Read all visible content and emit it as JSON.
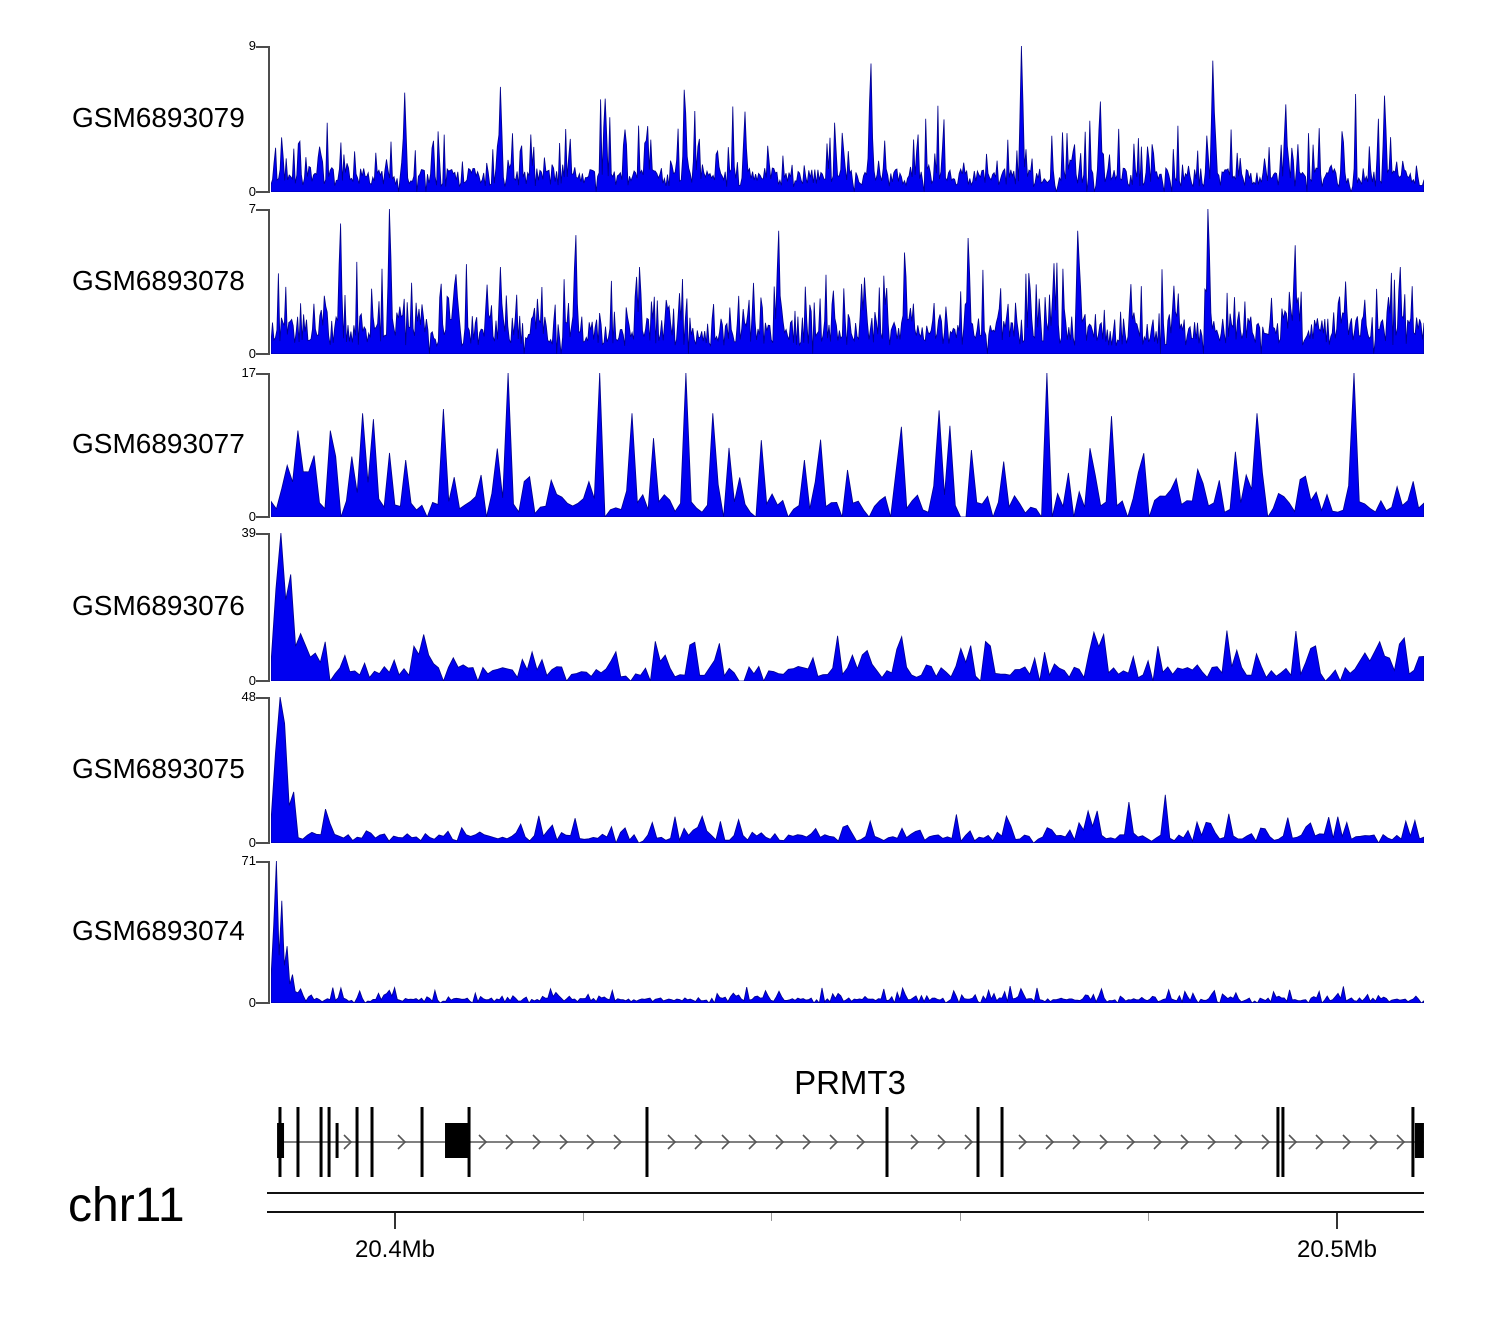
{
  "colors": {
    "signal_fill": "#0000f0",
    "signal_stroke": "#00008b",
    "axis_bracket": "#4d4d4d",
    "gene_black": "#000000",
    "gene_line_gray": "#808080",
    "arrow_gray": "#555555"
  },
  "chart_data": {
    "type": "area",
    "description": "Genome-browser coverage tracks (6 GEO samples) over chr11 around the PRMT3 gene; x axis 20.4Mb to 20.5Mb",
    "x_axis": {
      "unit": "Mb",
      "chrom_label": "chr11",
      "range_mb": [
        20.3868,
        20.5092
      ],
      "major_ticks": [
        {
          "mb": 20.4,
          "label": "20.4Mb"
        },
        {
          "mb": 20.5,
          "label": "20.5Mb"
        }
      ],
      "minor_ticks_mb": [
        20.42,
        20.44,
        20.46,
        20.48
      ]
    },
    "tracks": [
      {
        "label": "GSM6893079",
        "ymin": 0,
        "ymax": 9,
        "gen": {
          "seed": 101,
          "n": 760,
          "base": 0.1,
          "gap_prob": 0.02,
          "spike_prob": 0.33,
          "spike": 0.2,
          "tall_prob": 0.05,
          "tall": 0.28,
          "envelope": [
            [
              0,
              1
            ],
            [
              1,
              1
            ]
          ],
          "peaks": [
            [
              0.116,
              0.68,
              0.003
            ],
            [
              0.199,
              0.72,
              0.003
            ],
            [
              0.29,
              0.64,
              0.003
            ],
            [
              0.359,
              0.7,
              0.003
            ],
            [
              0.411,
              0.55,
              0.003
            ],
            [
              0.52,
              0.88,
              0.003
            ],
            [
              0.651,
              1.0,
              0.003
            ],
            [
              0.719,
              0.62,
              0.003
            ],
            [
              0.817,
              0.9,
              0.003
            ],
            [
              0.88,
              0.6,
              0.003
            ],
            [
              0.966,
              0.66,
              0.003
            ]
          ]
        }
      },
      {
        "label": "GSM6893078",
        "ymin": 0,
        "ymax": 7,
        "gen": {
          "seed": 202,
          "n": 780,
          "base": 0.16,
          "gap_prob": 0.02,
          "spike_prob": 0.38,
          "spike": 0.22,
          "tall_prob": 0.05,
          "tall": 0.26,
          "envelope": [
            [
              0,
              1
            ],
            [
              1,
              1
            ]
          ],
          "peaks": [
            [
              0.06,
              0.9,
              0.003
            ],
            [
              0.103,
              1.0,
              0.003
            ],
            [
              0.16,
              0.55,
              0.006
            ],
            [
              0.199,
              0.6,
              0.003
            ],
            [
              0.264,
              0.82,
              0.003
            ],
            [
              0.32,
              0.6,
              0.003
            ],
            [
              0.44,
              0.85,
              0.003
            ],
            [
              0.55,
              0.7,
              0.003
            ],
            [
              0.605,
              0.8,
              0.003
            ],
            [
              0.7,
              0.85,
              0.003
            ],
            [
              0.813,
              1.0,
              0.003
            ],
            [
              0.888,
              0.75,
              0.003
            ],
            [
              0.932,
              0.5,
              0.003
            ],
            [
              0.979,
              0.6,
              0.003
            ]
          ]
        }
      },
      {
        "label": "GSM6893077",
        "ymin": 0,
        "ymax": 17,
        "gen": {
          "seed": 303,
          "n": 215,
          "base": 0.07,
          "gap_prob": 0.08,
          "spike_prob": 0.55,
          "spike": 0.25,
          "tall_prob": 0.05,
          "tall": 0.3,
          "envelope": [
            [
              0,
              1
            ],
            [
              1,
              1
            ]
          ],
          "peaks": [
            [
              0.0217,
              0.6,
              0.004
            ],
            [
              0.0512,
              0.6,
              0.004
            ],
            [
              0.0798,
              0.72,
              0.004
            ],
            [
              0.0867,
              0.68,
              0.004
            ],
            [
              0.1492,
              0.75,
              0.004
            ],
            [
              0.2055,
              1.0,
              0.0035
            ],
            [
              0.2853,
              1.0,
              0.0035
            ],
            [
              0.3114,
              0.72,
              0.004
            ],
            [
              0.3608,
              1.0,
              0.0035
            ],
            [
              0.3851,
              0.72,
              0.004
            ],
            [
              0.5776,
              0.74,
              0.004
            ],
            [
              0.6722,
              1.0,
              0.0035
            ],
            [
              0.7277,
              0.7,
              0.004
            ],
            [
              0.8534,
              0.72,
              0.004
            ],
            [
              0.9375,
              1.0,
              0.0035
            ]
          ]
        }
      },
      {
        "label": "GSM6893076",
        "ymin": 0,
        "ymax": 39,
        "gen": {
          "seed": 404,
          "n": 235,
          "base": 0.06,
          "gap_prob": 0.06,
          "spike_prob": 0.5,
          "spike": 0.13,
          "tall_prob": 0.04,
          "tall": 0.15,
          "envelope": [
            [
              0,
              1
            ],
            [
              1,
              1
            ]
          ],
          "peaks": [
            [
              0.004,
              0.62,
              0.005
            ],
            [
              0.009,
              1.0,
              0.004
            ],
            [
              0.013,
              0.55,
              0.004
            ],
            [
              0.018,
              0.72,
              0.005
            ],
            [
              0.024,
              0.32,
              0.006
            ],
            [
              0.032,
              0.18,
              0.008
            ],
            [
              0.13,
              0.18,
              0.005
            ],
            [
              0.545,
              0.3,
              0.008
            ],
            [
              0.6,
              0.22,
              0.006
            ],
            [
              0.715,
              0.33,
              0.01
            ],
            [
              0.9,
              0.22,
              0.006
            ],
            [
              0.98,
              0.25,
              0.004
            ]
          ]
        }
      },
      {
        "label": "GSM6893075",
        "ymin": 0,
        "ymax": 48,
        "gen": {
          "seed": 505,
          "n": 255,
          "base": 0.035,
          "gap_prob": 0.05,
          "spike_prob": 0.45,
          "spike": 0.08,
          "tall_prob": 0.04,
          "tall": 0.1,
          "envelope": [
            [
              0,
              1
            ],
            [
              1,
              1
            ]
          ],
          "peaks": [
            [
              0.003,
              0.62,
              0.004
            ],
            [
              0.007,
              1.0,
              0.0035
            ],
            [
              0.013,
              0.82,
              0.004
            ],
            [
              0.019,
              0.35,
              0.005
            ],
            [
              0.35,
              0.18,
              0.004
            ],
            [
              0.52,
              0.15,
              0.004
            ],
            [
              0.715,
              0.22,
              0.005
            ],
            [
              0.745,
              0.28,
              0.004
            ],
            [
              0.775,
              0.33,
              0.004
            ],
            [
              0.83,
              0.2,
              0.004
            ],
            [
              0.925,
              0.18,
              0.004
            ],
            [
              0.985,
              0.15,
              0.004
            ]
          ]
        }
      },
      {
        "label": "GSM6893074",
        "ymin": 0,
        "ymax": 71,
        "gen": {
          "seed": 606,
          "n": 430,
          "base": 0.022,
          "gap_prob": 0.04,
          "spike_prob": 0.4,
          "spike": 0.04,
          "tall_prob": 0.03,
          "tall": 0.06,
          "envelope": [
            [
              0,
              1
            ],
            [
              1,
              1
            ]
          ],
          "peaks": [
            [
              0.002,
              0.55,
              0.003
            ],
            [
              0.005,
              1.0,
              0.003
            ],
            [
              0.009,
              0.72,
              0.003
            ],
            [
              0.013,
              0.4,
              0.004
            ],
            [
              0.018,
              0.2,
              0.005
            ],
            [
              0.025,
              0.1,
              0.006
            ],
            [
              0.4,
              0.07,
              0.004
            ],
            [
              0.55,
              0.06,
              0.004
            ],
            [
              0.72,
              0.1,
              0.004
            ],
            [
              0.8,
              0.07,
              0.003
            ],
            [
              0.87,
              0.08,
              0.003
            ],
            [
              0.95,
              0.06,
              0.003
            ]
          ]
        }
      }
    ],
    "gene": {
      "name": "PRMT3",
      "chrom": "chr11",
      "strand": "+",
      "line_mb": [
        20.38779,
        20.50923
      ],
      "exons_tall_mb": [
        20.38779,
        20.3897,
        20.39215,
        20.393,
        20.39597,
        20.39756,
        20.40287,
        20.40786,
        20.42675,
        20.45223,
        20.46189,
        20.46444,
        20.49373,
        20.49426,
        20.50806
      ],
      "exons_short_mb": [
        20.39385
      ],
      "exon_boxes_mb": [
        [
          20.38748,
          20.38822
        ],
        [
          20.40531,
          20.40796
        ],
        [
          20.50827,
          20.50923
        ]
      ]
    }
  }
}
